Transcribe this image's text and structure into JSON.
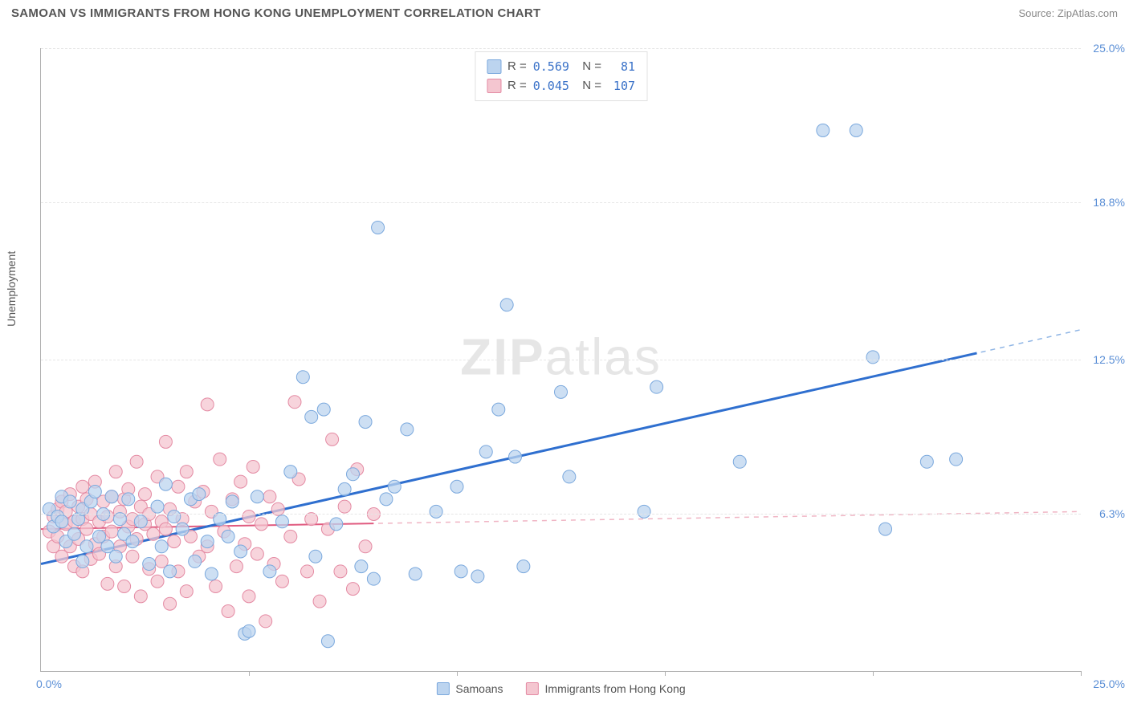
{
  "title": "SAMOAN VS IMMIGRANTS FROM HONG KONG UNEMPLOYMENT CORRELATION CHART",
  "source_prefix": "Source: ",
  "source_name": "ZipAtlas.com",
  "watermark": {
    "bold": "ZIP",
    "rest": "atlas"
  },
  "ylabel": "Unemployment",
  "chart": {
    "type": "scatter",
    "xlim": [
      0,
      25
    ],
    "ylim": [
      0,
      25
    ],
    "yticks": [
      6.3,
      12.5,
      18.8,
      25.0
    ],
    "ytick_labels": [
      "6.3%",
      "12.5%",
      "18.8%",
      "25.0%"
    ],
    "xtick_positions": [
      5,
      10,
      15,
      20,
      25
    ],
    "x_origin_label": "0.0%",
    "x_max_label": "25.0%",
    "background_color": "#ffffff",
    "grid_color": "#e6e6e6",
    "axis_color": "#b0b0b0",
    "series": [
      {
        "name": "Samoans",
        "label": "Samoans",
        "marker_fill": "#bcd4ef",
        "marker_stroke": "#7aa8dd",
        "marker_opacity": 0.75,
        "marker_radius": 8,
        "trend_solid_color": "#2f6fcf",
        "trend_solid_width": 3,
        "trend_dash_color": "#8fb5e5",
        "R": "0.569",
        "N": "81",
        "trend": {
          "x1": 0,
          "y1": 4.3,
          "x2": 25,
          "y2": 13.7
        },
        "solid_until_x": 22.5,
        "points": [
          [
            0.2,
            6.5
          ],
          [
            0.3,
            5.8
          ],
          [
            0.4,
            6.2
          ],
          [
            0.5,
            6.0
          ],
          [
            0.5,
            7.0
          ],
          [
            0.6,
            5.2
          ],
          [
            0.7,
            6.8
          ],
          [
            0.8,
            5.5
          ],
          [
            0.9,
            6.1
          ],
          [
            1.0,
            6.5
          ],
          [
            1.0,
            4.4
          ],
          [
            1.1,
            5.0
          ],
          [
            1.2,
            6.8
          ],
          [
            1.3,
            7.2
          ],
          [
            1.4,
            5.4
          ],
          [
            1.5,
            6.3
          ],
          [
            1.6,
            5.0
          ],
          [
            1.7,
            7.0
          ],
          [
            1.8,
            4.6
          ],
          [
            1.9,
            6.1
          ],
          [
            2.0,
            5.5
          ],
          [
            2.1,
            6.9
          ],
          [
            2.2,
            5.2
          ],
          [
            2.4,
            6.0
          ],
          [
            2.6,
            4.3
          ],
          [
            2.8,
            6.6
          ],
          [
            2.9,
            5.0
          ],
          [
            3.0,
            7.5
          ],
          [
            3.1,
            4.0
          ],
          [
            3.2,
            6.2
          ],
          [
            3.4,
            5.7
          ],
          [
            3.6,
            6.9
          ],
          [
            3.7,
            4.4
          ],
          [
            3.8,
            7.1
          ],
          [
            4.0,
            5.2
          ],
          [
            4.1,
            3.9
          ],
          [
            4.3,
            6.1
          ],
          [
            4.5,
            5.4
          ],
          [
            4.6,
            6.8
          ],
          [
            4.8,
            4.8
          ],
          [
            4.9,
            1.5
          ],
          [
            5.0,
            1.6
          ],
          [
            5.2,
            7.0
          ],
          [
            5.5,
            4.0
          ],
          [
            5.8,
            6.0
          ],
          [
            6.0,
            8.0
          ],
          [
            6.3,
            11.8
          ],
          [
            6.5,
            10.2
          ],
          [
            6.6,
            4.6
          ],
          [
            6.8,
            10.5
          ],
          [
            6.9,
            1.2
          ],
          [
            7.1,
            5.9
          ],
          [
            7.3,
            7.3
          ],
          [
            7.5,
            7.9
          ],
          [
            7.7,
            4.2
          ],
          [
            7.8,
            10.0
          ],
          [
            8.0,
            3.7
          ],
          [
            8.1,
            17.8
          ],
          [
            8.3,
            6.9
          ],
          [
            8.5,
            7.4
          ],
          [
            8.8,
            9.7
          ],
          [
            9.0,
            3.9
          ],
          [
            9.5,
            6.4
          ],
          [
            10.0,
            7.4
          ],
          [
            10.1,
            4.0
          ],
          [
            10.5,
            3.8
          ],
          [
            10.7,
            8.8
          ],
          [
            11.0,
            10.5
          ],
          [
            11.2,
            14.7
          ],
          [
            11.4,
            8.6
          ],
          [
            11.6,
            4.2
          ],
          [
            12.5,
            11.2
          ],
          [
            12.7,
            7.8
          ],
          [
            14.5,
            6.4
          ],
          [
            14.8,
            11.4
          ],
          [
            16.8,
            8.4
          ],
          [
            18.8,
            21.7
          ],
          [
            19.6,
            21.7
          ],
          [
            20.0,
            12.6
          ],
          [
            20.3,
            5.7
          ],
          [
            21.3,
            8.4
          ],
          [
            22.0,
            8.5
          ]
        ]
      },
      {
        "name": "Immigrants from Hong Kong",
        "label": "Immigrants from Hong Kong",
        "marker_fill": "#f4c6d0",
        "marker_stroke": "#e48aa3",
        "marker_opacity": 0.75,
        "marker_radius": 8,
        "trend_solid_color": "#e05a7f",
        "trend_solid_width": 2,
        "trend_dash_color": "#f0b5c4",
        "R": "0.045",
        "N": "107",
        "trend": {
          "x1": 0,
          "y1": 5.7,
          "x2": 25,
          "y2": 6.4
        },
        "solid_until_x": 8.0,
        "points": [
          [
            0.2,
            5.6
          ],
          [
            0.3,
            6.2
          ],
          [
            0.3,
            5.0
          ],
          [
            0.4,
            6.5
          ],
          [
            0.4,
            5.4
          ],
          [
            0.5,
            6.8
          ],
          [
            0.5,
            4.6
          ],
          [
            0.6,
            5.9
          ],
          [
            0.6,
            6.4
          ],
          [
            0.7,
            5.0
          ],
          [
            0.7,
            7.1
          ],
          [
            0.8,
            6.0
          ],
          [
            0.8,
            4.2
          ],
          [
            0.9,
            6.6
          ],
          [
            0.9,
            5.3
          ],
          [
            1.0,
            6.1
          ],
          [
            1.0,
            7.4
          ],
          [
            1.0,
            4.0
          ],
          [
            1.1,
            5.7
          ],
          [
            1.1,
            6.9
          ],
          [
            1.2,
            4.5
          ],
          [
            1.2,
            6.3
          ],
          [
            1.3,
            5.1
          ],
          [
            1.3,
            7.6
          ],
          [
            1.4,
            6.0
          ],
          [
            1.4,
            4.7
          ],
          [
            1.5,
            6.8
          ],
          [
            1.5,
            5.4
          ],
          [
            1.6,
            6.2
          ],
          [
            1.6,
            3.5
          ],
          [
            1.7,
            7.0
          ],
          [
            1.7,
            5.6
          ],
          [
            1.8,
            4.2
          ],
          [
            1.8,
            8.0
          ],
          [
            1.9,
            6.4
          ],
          [
            1.9,
            5.0
          ],
          [
            2.0,
            6.9
          ],
          [
            2.0,
            3.4
          ],
          [
            2.1,
            5.8
          ],
          [
            2.1,
            7.3
          ],
          [
            2.2,
            4.6
          ],
          [
            2.2,
            6.1
          ],
          [
            2.3,
            5.3
          ],
          [
            2.3,
            8.4
          ],
          [
            2.4,
            6.6
          ],
          [
            2.4,
            3.0
          ],
          [
            2.5,
            5.9
          ],
          [
            2.5,
            7.1
          ],
          [
            2.6,
            4.1
          ],
          [
            2.6,
            6.3
          ],
          [
            2.7,
            5.5
          ],
          [
            2.8,
            7.8
          ],
          [
            2.8,
            3.6
          ],
          [
            2.9,
            6.0
          ],
          [
            2.9,
            4.4
          ],
          [
            3.0,
            5.7
          ],
          [
            3.0,
            9.2
          ],
          [
            3.1,
            6.5
          ],
          [
            3.1,
            2.7
          ],
          [
            3.2,
            5.2
          ],
          [
            3.3,
            7.4
          ],
          [
            3.3,
            4.0
          ],
          [
            3.4,
            6.1
          ],
          [
            3.5,
            3.2
          ],
          [
            3.5,
            8.0
          ],
          [
            3.6,
            5.4
          ],
          [
            3.7,
            6.8
          ],
          [
            3.8,
            4.6
          ],
          [
            3.9,
            7.2
          ],
          [
            4.0,
            5.0
          ],
          [
            4.0,
            10.7
          ],
          [
            4.1,
            6.4
          ],
          [
            4.2,
            3.4
          ],
          [
            4.3,
            8.5
          ],
          [
            4.4,
            5.6
          ],
          [
            4.5,
            2.4
          ],
          [
            4.6,
            6.9
          ],
          [
            4.7,
            4.2
          ],
          [
            4.8,
            7.6
          ],
          [
            4.9,
            5.1
          ],
          [
            5.0,
            3.0
          ],
          [
            5.0,
            6.2
          ],
          [
            5.1,
            8.2
          ],
          [
            5.2,
            4.7
          ],
          [
            5.3,
            5.9
          ],
          [
            5.4,
            2.0
          ],
          [
            5.5,
            7.0
          ],
          [
            5.6,
            4.3
          ],
          [
            5.7,
            6.5
          ],
          [
            5.8,
            3.6
          ],
          [
            6.0,
            5.4
          ],
          [
            6.1,
            10.8
          ],
          [
            6.2,
            7.7
          ],
          [
            6.4,
            4.0
          ],
          [
            6.5,
            6.1
          ],
          [
            6.7,
            2.8
          ],
          [
            6.9,
            5.7
          ],
          [
            7.0,
            9.3
          ],
          [
            7.2,
            4.0
          ],
          [
            7.3,
            6.6
          ],
          [
            7.5,
            3.3
          ],
          [
            7.6,
            8.1
          ],
          [
            7.8,
            5.0
          ],
          [
            8.0,
            6.3
          ]
        ]
      }
    ]
  }
}
